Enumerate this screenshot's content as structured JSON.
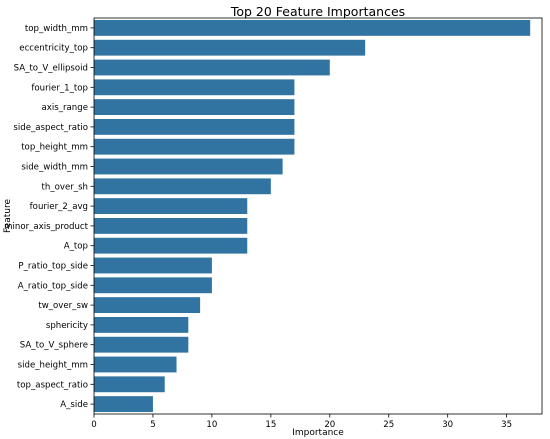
{
  "chart_data": {
    "type": "bar",
    "orientation": "horizontal",
    "title": "Top 20 Feature Importances",
    "xlabel": "Importance",
    "ylabel": "Feature",
    "xlim": [
      0,
      38
    ],
    "xticks": [
      0,
      5,
      10,
      15,
      20,
      25,
      30,
      35
    ],
    "grid": false,
    "color": "#3274a1",
    "categories": [
      "top_width_mm",
      "eccentricity_top",
      "SA_to_V_ellipsoid",
      "fourier_1_top",
      "axis_range",
      "side_aspect_ratio",
      "top_height_mm",
      "side_width_mm",
      "th_over_sh",
      "fourier_2_avg",
      "minor_axis_product",
      "A_top",
      "P_ratio_top_side",
      "A_ratio_top_side",
      "tw_over_sw",
      "sphericity",
      "SA_to_V_sphere",
      "side_height_mm",
      "top_aspect_ratio",
      "A_side"
    ],
    "values": [
      37,
      23,
      20,
      17,
      17,
      17,
      17,
      16,
      15,
      13,
      13,
      13,
      10,
      10,
      9,
      8,
      8,
      7,
      6,
      5
    ]
  }
}
